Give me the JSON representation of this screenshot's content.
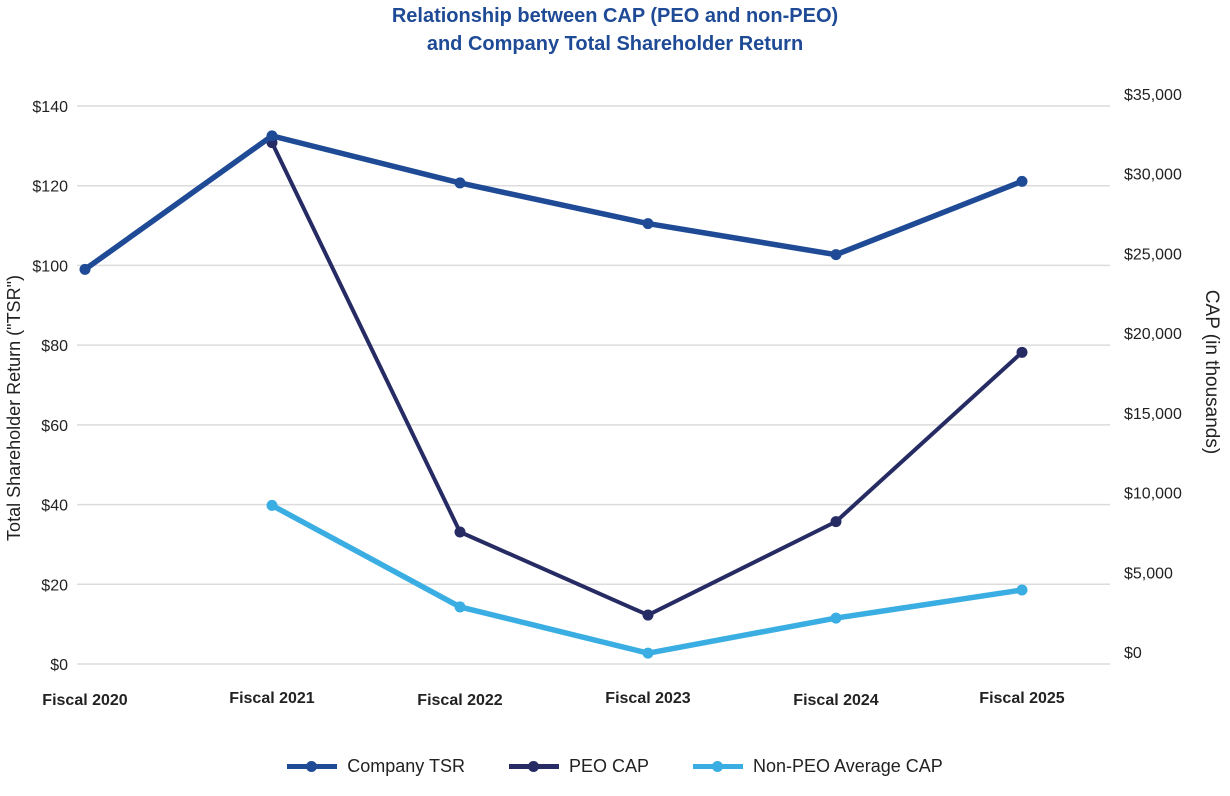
{
  "chart_data": {
    "type": "line",
    "title_line1": "Relationship between CAP (PEO and non-PEO)",
    "title_line2": "and Company Total Shareholder Return",
    "categories": [
      "Fiscal 2020",
      "Fiscal 2021",
      "Fiscal 2022",
      "Fiscal 2023",
      "Fiscal 2024",
      "Fiscal 2025"
    ],
    "ylabel_left": "Total Shareholder Return (\"TSR\")",
    "ylabel_right": "CAP (in thousands)",
    "ylim_left": [
      0,
      140
    ],
    "ylim_right": [
      0,
      35000
    ],
    "yticks_left": [
      "$0",
      "$20",
      "$40",
      "$60",
      "$80",
      "$100",
      "$120",
      "$140"
    ],
    "yticks_right": [
      "$0",
      "$5,000",
      "$10,000",
      "$15,000",
      "$20,000",
      "$25,000",
      "$30,000",
      "$35,000"
    ],
    "grid": true,
    "legend_position": "bottom",
    "series": [
      {
        "name": "Company TSR",
        "axis": "left",
        "color": "#1f4a96",
        "values": [
          99,
          132.5,
          120.7,
          110.5,
          102.7,
          121.1
        ]
      },
      {
        "name": "PEO CAP",
        "axis": "right",
        "color": "#262c63",
        "values": [
          null,
          32700,
          8280,
          3070,
          8930,
          19550
        ]
      },
      {
        "name": "Non-PEO Average CAP",
        "axis": "right",
        "color": "#3aaee2",
        "values": [
          null,
          9950,
          3580,
          680,
          2880,
          4640
        ]
      }
    ]
  }
}
